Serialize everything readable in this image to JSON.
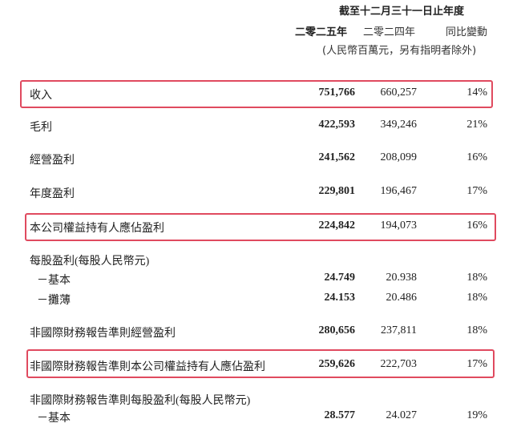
{
  "header": {
    "period": "截至十二月三十一日止年度",
    "col_2025": "二零二五年",
    "col_2024": "二零二四年",
    "col_change": "同比變動",
    "units": "(人民幣百萬元，另有指明者除外)"
  },
  "highlight_color": "#e04a5f",
  "rows": [
    {
      "label": "收入",
      "v2025": "751,766",
      "v2024": "660,257",
      "change": "14%",
      "highlighted": true
    },
    {
      "label": "毛利",
      "v2025": "422,593",
      "v2024": "349,246",
      "change": "21%"
    },
    {
      "label": "經營盈利",
      "v2025": "241,562",
      "v2024": "208,099",
      "change": "16%"
    },
    {
      "label": "年度盈利",
      "v2025": "229,801",
      "v2024": "196,467",
      "change": "17%"
    },
    {
      "label": "本公司權益持有人應佔盈利",
      "v2025": "224,842",
      "v2024": "194,073",
      "change": "16%",
      "highlighted": true
    },
    {
      "label": "每股盈利(每股人民幣元)"
    },
    {
      "label": "－基本",
      "v2025": "24.749",
      "v2024": "20.938",
      "change": "18%"
    },
    {
      "label": "－攤薄",
      "v2025": "24.153",
      "v2024": "20.486",
      "change": "18%"
    },
    {
      "label": "非國際財務報告準則經營盈利",
      "v2025": "280,656",
      "v2024": "237,811",
      "change": "18%"
    },
    {
      "label": "非國際財務報告準則本公司權益持有人應佔盈利",
      "v2025": "259,626",
      "v2024": "222,703",
      "change": "17%",
      "highlighted": true
    },
    {
      "label": "非國際財務報告準則每股盈利(每股人民幣元)"
    },
    {
      "label": "－基本",
      "v2025": "28.577",
      "v2024": "24.027",
      "change": "19%"
    }
  ]
}
